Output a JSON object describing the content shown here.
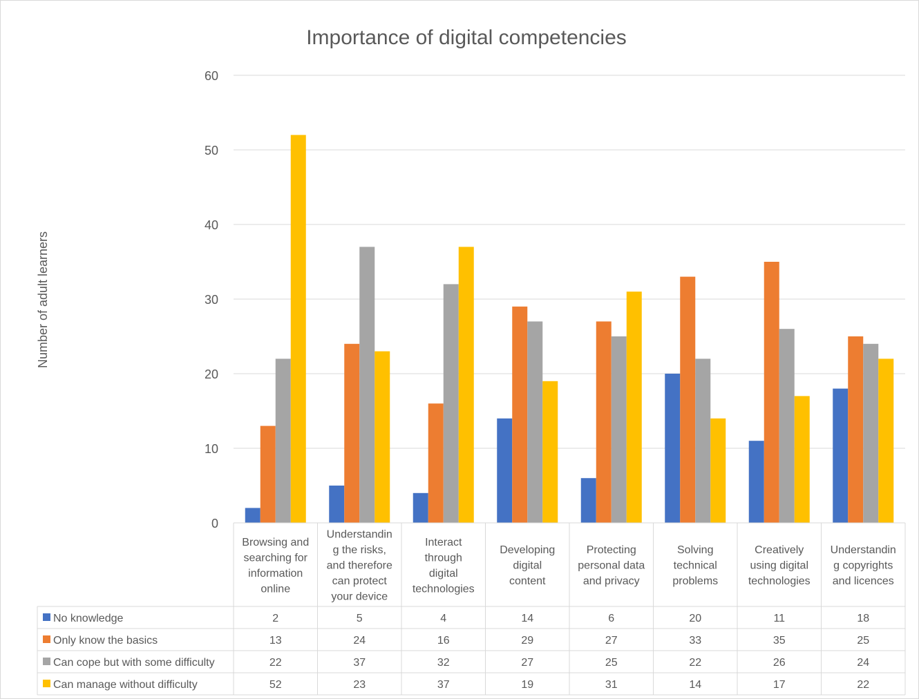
{
  "chart_data": {
    "type": "bar",
    "title": "Importance of digital competencies",
    "ylabel": "Number of adult learners",
    "xlabel": "",
    "ylim": [
      0,
      60
    ],
    "yticks": [
      0,
      10,
      20,
      30,
      40,
      50,
      60
    ],
    "grid": true,
    "legend": "data-table",
    "categories": [
      [
        "Browsing and",
        "searching for",
        "information",
        "online"
      ],
      [
        "Understandin",
        "g the risks,",
        "and therefore",
        "can protect",
        "your device"
      ],
      [
        "Interact",
        "through",
        "digital",
        "technologies"
      ],
      [
        "Developing",
        "digital",
        "content"
      ],
      [
        "Protecting",
        "personal data",
        "and privacy"
      ],
      [
        "Solving",
        "technical",
        "problems"
      ],
      [
        "Creatively",
        "using digital",
        "technologies"
      ],
      [
        "Understandin",
        "g copyrights",
        "and licences"
      ]
    ],
    "series": [
      {
        "name": "No knowledge",
        "color": "#4472C4",
        "values": [
          2,
          5,
          4,
          14,
          6,
          20,
          11,
          18
        ]
      },
      {
        "name": "Only know the basics",
        "color": "#ED7D31",
        "values": [
          13,
          24,
          16,
          29,
          27,
          33,
          35,
          25
        ]
      },
      {
        "name": "Can cope but with some difficulty",
        "color": "#A5A5A5",
        "values": [
          22,
          37,
          32,
          27,
          25,
          22,
          26,
          24
        ]
      },
      {
        "name": "Can manage without difficulty",
        "color": "#FFC000",
        "values": [
          52,
          23,
          37,
          19,
          31,
          14,
          17,
          22
        ]
      }
    ]
  }
}
